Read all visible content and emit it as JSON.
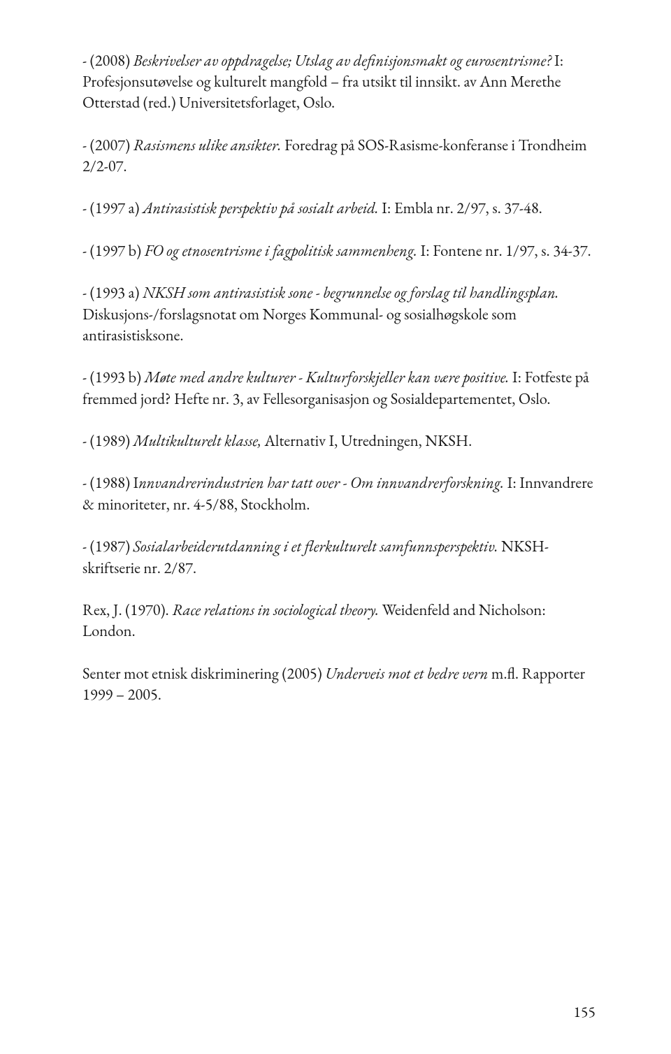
{
  "entries": [
    {
      "segments": [
        {
          "text": "- (2008) ",
          "italic": false
        },
        {
          "text": "Beskrivelser av oppdragelse; Utslag av definisjonsmakt og eurosentrisme?",
          "italic": true
        },
        {
          "text": " I: Profesjonsutøvelse og kulturelt mangfold – fra utsikt til innsikt. av Ann Merethe Otterstad (red.) Universitetsforlaget, Oslo.",
          "italic": false
        }
      ]
    },
    {
      "segments": [
        {
          "text": "- (2007) ",
          "italic": false
        },
        {
          "text": "Rasismens ulike ansikter.",
          "italic": true
        },
        {
          "text": " Foredrag på SOS-Rasisme-konferanse i Trondheim 2/2-07.",
          "italic": false
        }
      ]
    },
    {
      "segments": [
        {
          "text": "- (1997 a) ",
          "italic": false
        },
        {
          "text": "Antirasistisk perspektiv på sosialt arbeid.",
          "italic": true
        },
        {
          "text": " I: Embla nr. 2/97, s. 37-48.",
          "italic": false
        }
      ]
    },
    {
      "segments": [
        {
          "text": "- (1997 b) ",
          "italic": false
        },
        {
          "text": "FO og etnosentrisme i fagpolitisk sammenheng.",
          "italic": true
        },
        {
          "text": " I: Fontene nr. 1/97, s. 34-37.",
          "italic": false
        }
      ]
    },
    {
      "segments": [
        {
          "text": "- (1993 a) ",
          "italic": false
        },
        {
          "text": "NKSH som antirasistisk sone - begrunnelse og forslag til handlingsplan.",
          "italic": true
        },
        {
          "text": " Diskusjons-/forslagsnotat om Norges Kommunal- og sosialhøgskole som antirasistisksone.",
          "italic": false
        }
      ]
    },
    {
      "segments": [
        {
          "text": "- (1993 b) ",
          "italic": false
        },
        {
          "text": "Møte med andre kulturer - Kulturforskjeller kan være positive.",
          "italic": true
        },
        {
          "text": " I: Fotfeste på fremmed jord? Hefte nr. 3, av Fellesorganisasjon og Sosialdepartementet, Oslo.",
          "italic": false
        }
      ]
    },
    {
      "segments": [
        {
          "text": "- (1989) ",
          "italic": false
        },
        {
          "text": "Multikulturelt klasse,",
          "italic": true
        },
        {
          "text": " Alternativ I, Utredningen, NKSH.",
          "italic": false
        }
      ]
    },
    {
      "segments": [
        {
          "text": "- (1988) I",
          "italic": false
        },
        {
          "text": "nnvandrerindustrien har tatt over - Om innvandrerforskning.",
          "italic": true
        },
        {
          "text": " I: Innvandrere & minoriteter, nr. 4-5/88, Stockholm.",
          "italic": false
        }
      ]
    },
    {
      "segments": [
        {
          "text": "- (1987) ",
          "italic": false
        },
        {
          "text": "Sosialarbeiderutdanning i et flerkulturelt samfunnsperspektiv.",
          "italic": true
        },
        {
          "text": " NKSH-skriftserie nr. 2/87.",
          "italic": false
        }
      ]
    },
    {
      "segments": [
        {
          "text": "Rex, J. (1970). ",
          "italic": false
        },
        {
          "text": "Race relations in sociological theory.",
          "italic": true
        },
        {
          "text": " Weidenfeld and Nicholson: London.",
          "italic": false
        }
      ]
    },
    {
      "segments": [
        {
          "text": "Senter mot etnisk diskriminering (2005) ",
          "italic": false
        },
        {
          "text": "Underveis mot et bedre vern",
          "italic": true
        },
        {
          "text": " m.fl. Rapporter 1999 – 2005.",
          "italic": false
        }
      ]
    }
  ],
  "pageNumber": "155"
}
